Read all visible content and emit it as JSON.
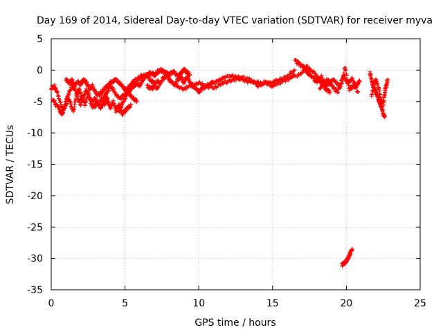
{
  "chart_data": {
    "type": "scatter",
    "title": "Day 169 of 2014, Sidereal Day-to-day VTEC variation (SDTVAR) for receiver myva",
    "xlabel": "GPS time / hours",
    "ylabel": "SDTVAR / TECUs",
    "xlim": [
      0,
      25
    ],
    "ylim": [
      -35,
      5
    ],
    "xticks": [
      0,
      5,
      10,
      15,
      20,
      25
    ],
    "yticks": [
      -35,
      -30,
      -25,
      -20,
      -15,
      -10,
      -5,
      0,
      5
    ],
    "grid": true,
    "marker": "+",
    "series_color": "#ff0000",
    "series": [
      {
        "name": "SDTVAR",
        "segments": [
          [
            [
              0.0,
              -3.0
            ],
            [
              0.2,
              -2.5
            ],
            [
              0.4,
              -3.5
            ],
            [
              0.6,
              -5.0
            ],
            [
              0.8,
              -6.5
            ],
            [
              1.0,
              -5.5
            ],
            [
              1.2,
              -3.5
            ],
            [
              1.4,
              -2.5
            ],
            [
              1.6,
              -3.0
            ],
            [
              1.8,
              -4.5
            ],
            [
              2.0,
              -5.5
            ],
            [
              2.2,
              -4.0
            ],
            [
              2.4,
              -3.0
            ],
            [
              2.6,
              -4.5
            ],
            [
              2.8,
              -5.0
            ],
            [
              3.0,
              -4.5
            ],
            [
              3.2,
              -5.5
            ],
            [
              3.4,
              -4.5
            ],
            [
              3.6,
              -5.5
            ],
            [
              3.8,
              -4.5
            ],
            [
              4.0,
              -6.0
            ],
            [
              4.2,
              -5.0
            ],
            [
              4.4,
              -6.5
            ],
            [
              4.6,
              -5.5
            ],
            [
              4.8,
              -7.0
            ],
            [
              5.0,
              -6.5
            ],
            [
              5.2,
              -6.0
            ],
            [
              5.4,
              -5.5
            ]
          ],
          [
            [
              0.1,
              -4.5
            ],
            [
              0.3,
              -5.5
            ],
            [
              0.5,
              -6.0
            ],
            [
              0.7,
              -7.0
            ],
            [
              0.9,
              -6.0
            ],
            [
              1.1,
              -4.0
            ],
            [
              1.3,
              -5.5
            ],
            [
              1.5,
              -6.5
            ],
            [
              1.7,
              -4.0
            ],
            [
              1.9,
              -3.0
            ],
            [
              2.1,
              -4.5
            ],
            [
              2.3,
              -5.5
            ],
            [
              2.5,
              -3.5
            ],
            [
              2.7,
              -5.5
            ],
            [
              2.9,
              -6.0
            ],
            [
              3.1,
              -5.0
            ],
            [
              3.3,
              -6.0
            ],
            [
              3.5,
              -5.5
            ],
            [
              3.7,
              -4.0
            ],
            [
              3.9,
              -5.5
            ]
          ],
          [
            [
              1.0,
              -1.5
            ],
            [
              1.2,
              -2.0
            ],
            [
              1.4,
              -1.5
            ],
            [
              1.6,
              -2.5
            ],
            [
              1.8,
              -1.8
            ],
            [
              2.0,
              -2.2
            ],
            [
              2.2,
              -1.5
            ],
            [
              2.4,
              -2.0
            ],
            [
              2.6,
              -3.0
            ],
            [
              2.8,
              -2.5
            ],
            [
              3.0,
              -3.5
            ],
            [
              3.2,
              -4.0
            ],
            [
              3.4,
              -3.5
            ],
            [
              3.6,
              -3.0
            ],
            [
              3.8,
              -2.5
            ],
            [
              4.0,
              -2.0
            ],
            [
              4.2,
              -1.8
            ],
            [
              4.4,
              -1.5
            ],
            [
              4.6,
              -2.0
            ],
            [
              4.8,
              -2.5
            ],
            [
              5.0,
              -3.0
            ],
            [
              5.2,
              -3.5
            ],
            [
              5.4,
              -4.0
            ],
            [
              5.6,
              -4.5
            ],
            [
              5.8,
              -5.0
            ]
          ],
          [
            [
              3.5,
              -4.5
            ],
            [
              3.8,
              -3.5
            ],
            [
              4.0,
              -2.5
            ],
            [
              4.3,
              -3.5
            ],
            [
              4.6,
              -4.5
            ],
            [
              4.9,
              -4.0
            ],
            [
              5.2,
              -3.0
            ],
            [
              5.5,
              -2.0
            ],
            [
              5.8,
              -1.5
            ],
            [
              6.1,
              -1.0
            ],
            [
              6.4,
              -0.8
            ],
            [
              6.7,
              -1.5
            ],
            [
              7.0,
              -2.0
            ],
            [
              7.3,
              -1.8
            ]
          ],
          [
            [
              4.6,
              -6.5
            ],
            [
              4.8,
              -5.5
            ],
            [
              5.0,
              -4.5
            ],
            [
              5.2,
              -3.5
            ],
            [
              5.4,
              -3.0
            ],
            [
              5.6,
              -2.5
            ],
            [
              5.8,
              -2.0
            ],
            [
              6.0,
              -2.5
            ],
            [
              6.2,
              -1.5
            ],
            [
              6.4,
              -1.0
            ],
            [
              6.6,
              -0.5
            ],
            [
              6.8,
              -0.5
            ],
            [
              7.0,
              -0.8
            ],
            [
              7.2,
              -0.3
            ],
            [
              7.4,
              0.0
            ],
            [
              7.6,
              -0.2
            ],
            [
              7.8,
              -0.5
            ],
            [
              8.0,
              -0.8
            ],
            [
              8.2,
              -0.3
            ],
            [
              8.4,
              -0.5
            ],
            [
              8.6,
              -1.0
            ],
            [
              8.8,
              -0.5
            ],
            [
              9.0,
              0.0
            ],
            [
              9.2,
              -0.3
            ],
            [
              9.4,
              -0.8
            ]
          ],
          [
            [
              6.5,
              -2.5
            ],
            [
              6.8,
              -3.0
            ],
            [
              7.0,
              -2.5
            ],
            [
              7.2,
              -3.0
            ],
            [
              7.5,
              -1.5
            ],
            [
              7.8,
              -1.0
            ],
            [
              8.0,
              -1.5
            ],
            [
              8.2,
              -2.0
            ],
            [
              8.4,
              -2.5
            ],
            [
              8.6,
              -1.5
            ],
            [
              8.8,
              -1.0
            ],
            [
              9.0,
              -2.0
            ],
            [
              9.2,
              -1.0
            ],
            [
              9.4,
              -2.0
            ],
            [
              9.6,
              -2.5
            ],
            [
              9.8,
              -3.0
            ],
            [
              10.0,
              -3.5
            ],
            [
              10.2,
              -3.0
            ],
            [
              10.5,
              -2.5
            ],
            [
              10.8,
              -2.0
            ],
            [
              11.0,
              -2.0
            ],
            [
              11.5,
              -1.5
            ],
            [
              12.0,
              -1.0
            ],
            [
              12.5,
              -1.0
            ],
            [
              13.0,
              -1.5
            ],
            [
              13.5,
              -2.0
            ],
            [
              14.0,
              -2.0
            ],
            [
              14.5,
              -2.0
            ],
            [
              15.0,
              -2.0
            ],
            [
              15.5,
              -1.5
            ],
            [
              16.0,
              -1.0
            ],
            [
              16.5,
              0.0
            ]
          ],
          [
            [
              8.5,
              -2.5
            ],
            [
              9.0,
              -3.0
            ],
            [
              9.5,
              -2.5
            ],
            [
              10.0,
              -2.0
            ],
            [
              10.5,
              -2.5
            ],
            [
              11.0,
              -2.8
            ],
            [
              11.5,
              -2.2
            ],
            [
              12.0,
              -1.8
            ],
            [
              12.5,
              -1.5
            ],
            [
              13.0,
              -1.2
            ],
            [
              13.5,
              -1.5
            ],
            [
              14.0,
              -2.5
            ],
            [
              14.5,
              -2.0
            ],
            [
              15.0,
              -2.5
            ],
            [
              15.5,
              -2.0
            ],
            [
              16.0,
              -1.5
            ],
            [
              16.5,
              -1.0
            ],
            [
              17.0,
              -0.5
            ],
            [
              17.3,
              0.5
            ],
            [
              17.6,
              0.0
            ],
            [
              18.0,
              -1.0
            ],
            [
              18.3,
              -2.0
            ],
            [
              18.6,
              -3.0
            ],
            [
              18.9,
              -3.5
            ]
          ],
          [
            [
              16.5,
              1.5
            ],
            [
              16.8,
              1.0
            ],
            [
              17.1,
              0.5
            ],
            [
              17.4,
              -0.5
            ],
            [
              17.7,
              -1.0
            ],
            [
              18.0,
              -2.0
            ],
            [
              18.3,
              -1.0
            ],
            [
              18.6,
              -2.5
            ],
            [
              18.9,
              -2.0
            ],
            [
              19.2,
              -1.5
            ],
            [
              19.5,
              -2.5
            ],
            [
              19.8,
              -1.0
            ],
            [
              20.1,
              -2.0
            ],
            [
              20.4,
              -1.5
            ],
            [
              20.7,
              -2.5
            ],
            [
              20.9,
              -1.8
            ]
          ],
          [
            [
              18.2,
              -3.0
            ],
            [
              18.5,
              -2.0
            ],
            [
              18.8,
              -1.5
            ],
            [
              19.1,
              -2.8
            ],
            [
              19.4,
              -3.5
            ],
            [
              19.7,
              -2.0
            ],
            [
              19.9,
              0.5
            ],
            [
              20.2,
              -3.0
            ],
            [
              20.5,
              -2.5
            ],
            [
              20.8,
              -3.5
            ]
          ],
          [
            [
              21.6,
              -0.5
            ],
            [
              21.7,
              -1.5
            ],
            [
              21.8,
              -2.5
            ],
            [
              21.9,
              -3.0
            ],
            [
              22.0,
              -3.5
            ],
            [
              22.1,
              -4.0
            ],
            [
              22.2,
              -5.0
            ],
            [
              22.3,
              -5.5
            ],
            [
              22.4,
              -6.0
            ],
            [
              22.5,
              -7.0
            ],
            [
              22.6,
              -7.5
            ]
          ],
          [
            [
              21.7,
              -4.0
            ],
            [
              21.9,
              -2.0
            ],
            [
              22.0,
              -1.5
            ],
            [
              22.2,
              -3.0
            ],
            [
              22.3,
              -4.5
            ],
            [
              22.5,
              -5.5
            ],
            [
              22.6,
              -3.5
            ],
            [
              22.7,
              -2.5
            ],
            [
              22.8,
              -1.5
            ]
          ],
          [
            [
              19.7,
              -31.0
            ],
            [
              19.85,
              -30.8
            ],
            [
              20.0,
              -30.4
            ],
            [
              20.1,
              -30.0
            ],
            [
              20.2,
              -29.5
            ],
            [
              20.3,
              -29.0
            ],
            [
              20.4,
              -28.5
            ]
          ]
        ]
      }
    ]
  }
}
